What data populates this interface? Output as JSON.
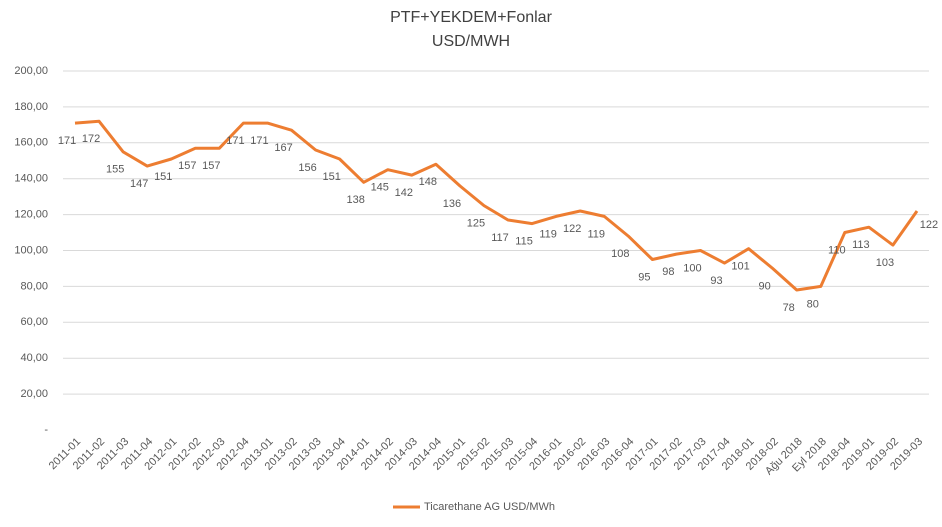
{
  "chart_data": {
    "type": "line",
    "title": "PTF+YEKDEM+Fonlar",
    "subtitle": "USD/MWH",
    "categories": [
      "2011-01",
      "2011-02",
      "2011-03",
      "2011-04",
      "2012-01",
      "2012-02",
      "2012-03",
      "2012-04",
      "2013-01",
      "2013-02",
      "2013-03",
      "2013-04",
      "2014-01",
      "2014-02",
      "2014-03",
      "2014-04",
      "2015-01",
      "2015-02",
      "2015-03",
      "2015-04",
      "2016-01",
      "2016-02",
      "2016-03",
      "2016-04",
      "2017-01",
      "2017-02",
      "2017-03",
      "2017-04",
      "2018-01",
      "2018-02",
      "Ağu 2018",
      "Eyl 2018",
      "2018-04",
      "2019-01",
      "2019-02",
      "2019-03"
    ],
    "series": [
      {
        "name": "Ticarethane AG USD/MWh",
        "color": "#ed7d31",
        "values": [
          171,
          172,
          155,
          147,
          151,
          157,
          157,
          171,
          171,
          167,
          156,
          151,
          138,
          145,
          142,
          148,
          136,
          125,
          117,
          115,
          119,
          122,
          119,
          108,
          95,
          98,
          100,
          93,
          101,
          90,
          78,
          80,
          110,
          113,
          103,
          122
        ]
      }
    ],
    "ylim": [
      0,
      200
    ],
    "yticks": [
      {
        "value": 0,
        "label": "-"
      },
      {
        "value": 20,
        "label": "20,00"
      },
      {
        "value": 40,
        "label": "40,00"
      },
      {
        "value": 60,
        "label": "60,00"
      },
      {
        "value": 80,
        "label": "80,00"
      },
      {
        "value": 100,
        "label": "100,00"
      },
      {
        "value": 120,
        "label": "120,00"
      },
      {
        "value": 140,
        "label": "140,00"
      },
      {
        "value": 160,
        "label": "160,00"
      },
      {
        "value": 180,
        "label": "180,00"
      },
      {
        "value": 200,
        "label": "200,00"
      }
    ],
    "grid": true,
    "legend": "bottom"
  }
}
